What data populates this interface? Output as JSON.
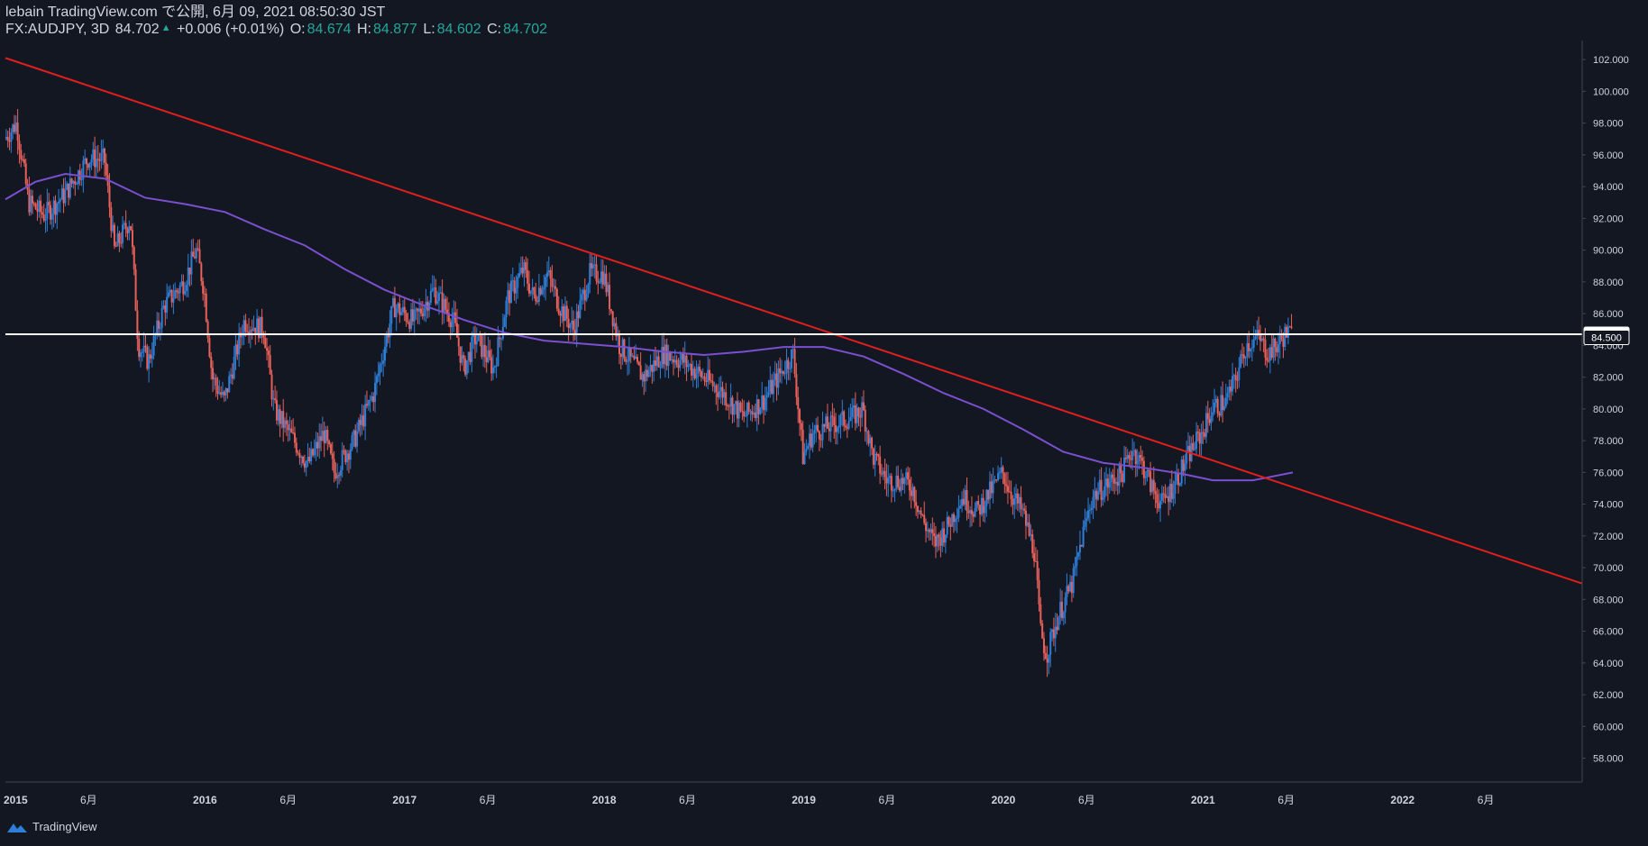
{
  "header": {
    "line1": "lebain TradingView.com で公開, 6月 09, 2021 08:50:30 JST",
    "symbol": "FX:AUDJPY, 3D",
    "last": "84.702",
    "change": "+0.006 (+0.01%)",
    "o_label": "O:",
    "o": "84.674",
    "h_label": "H:",
    "h": "84.877",
    "l_label": "L:",
    "l": "84.602",
    "c_label": "C:",
    "c": "84.702"
  },
  "footer": {
    "brand": "TradingView"
  },
  "colors": {
    "background": "#131722",
    "up": "#2e7fd9",
    "down": "#e8605a",
    "trendline": "#e01e1e",
    "ma": "#7b4fd0",
    "hline": "#ffffff",
    "axis_text": "#d1d4dc"
  },
  "chart_data": {
    "type": "candlestick",
    "symbol": "FX:AUDJPY",
    "timeframe": "3D",
    "ylim": [
      56.5,
      103.2
    ],
    "xlim": [
      2015.0,
      2022.9
    ],
    "y_ticks": [
      "58.000",
      "60.000",
      "62.000",
      "64.000",
      "66.000",
      "68.000",
      "70.000",
      "72.000",
      "74.000",
      "76.000",
      "78.000",
      "80.000",
      "82.000",
      "84.000",
      "86.000",
      "88.000",
      "90.000",
      "92.000",
      "94.000",
      "96.000",
      "98.000",
      "100.000",
      "102.000"
    ],
    "x_ticks": [
      {
        "t": 2015.0,
        "label": "2015"
      },
      {
        "t": 2015.417,
        "label": "6月"
      },
      {
        "t": 2016.0,
        "label": "2016"
      },
      {
        "t": 2016.417,
        "label": "6月"
      },
      {
        "t": 2017.0,
        "label": "2017"
      },
      {
        "t": 2017.417,
        "label": "6月"
      },
      {
        "t": 2018.0,
        "label": "2018"
      },
      {
        "t": 2018.417,
        "label": "6月"
      },
      {
        "t": 2019.0,
        "label": "2019"
      },
      {
        "t": 2019.417,
        "label": "6月"
      },
      {
        "t": 2020.0,
        "label": "2020"
      },
      {
        "t": 2020.417,
        "label": "6月"
      },
      {
        "t": 2021.0,
        "label": "2021"
      },
      {
        "t": 2021.417,
        "label": "6月"
      },
      {
        "t": 2022.0,
        "label": "2022"
      },
      {
        "t": 2022.417,
        "label": "6月"
      }
    ],
    "price_labels": [
      {
        "value": 84.702,
        "label": "84.702",
        "style": "filled"
      },
      {
        "value": 84.5,
        "label": "84.500",
        "style": "outline"
      }
    ],
    "horizontal_line": 84.702,
    "trendline": [
      [
        2015.0,
        102.1
      ],
      [
        2022.9,
        69.0
      ]
    ],
    "moving_average": [
      [
        2015.0,
        93.2
      ],
      [
        2015.15,
        94.3
      ],
      [
        2015.3,
        94.8
      ],
      [
        2015.5,
        94.5
      ],
      [
        2015.7,
        93.3
      ],
      [
        2015.9,
        92.9
      ],
      [
        2016.1,
        92.4
      ],
      [
        2016.3,
        91.3
      ],
      [
        2016.5,
        90.3
      ],
      [
        2016.7,
        88.8
      ],
      [
        2016.9,
        87.5
      ],
      [
        2017.1,
        86.5
      ],
      [
        2017.3,
        85.6
      ],
      [
        2017.5,
        84.8
      ],
      [
        2017.7,
        84.3
      ],
      [
        2017.9,
        84.1
      ],
      [
        2018.1,
        83.9
      ],
      [
        2018.3,
        83.6
      ],
      [
        2018.5,
        83.4
      ],
      [
        2018.7,
        83.6
      ],
      [
        2018.9,
        83.9
      ],
      [
        2019.1,
        83.9
      ],
      [
        2019.3,
        83.3
      ],
      [
        2019.5,
        82.2
      ],
      [
        2019.7,
        81.0
      ],
      [
        2019.9,
        80.0
      ],
      [
        2020.1,
        78.7
      ],
      [
        2020.3,
        77.3
      ],
      [
        2020.5,
        76.6
      ],
      [
        2020.7,
        76.3
      ],
      [
        2020.9,
        75.9
      ],
      [
        2021.05,
        75.5
      ],
      [
        2021.25,
        75.5
      ],
      [
        2021.45,
        76.0
      ]
    ],
    "price_path": [
      [
        2015.0,
        97.0
      ],
      [
        2015.06,
        98.0
      ],
      [
        2015.12,
        93.0
      ],
      [
        2015.2,
        92.2
      ],
      [
        2015.3,
        93.5
      ],
      [
        2015.42,
        95.8
      ],
      [
        2015.5,
        95.7
      ],
      [
        2015.55,
        90.0
      ],
      [
        2015.63,
        92.0
      ],
      [
        2015.67,
        84.0
      ],
      [
        2015.72,
        83.0
      ],
      [
        2015.8,
        86.5
      ],
      [
        2015.9,
        88.0
      ],
      [
        2015.96,
        90.0
      ],
      [
        2016.0,
        87.5
      ],
      [
        2016.04,
        82.0
      ],
      [
        2016.1,
        80.5
      ],
      [
        2016.2,
        85.5
      ],
      [
        2016.3,
        85.0
      ],
      [
        2016.35,
        80.0
      ],
      [
        2016.45,
        78.0
      ],
      [
        2016.52,
        76.5
      ],
      [
        2016.6,
        78.5
      ],
      [
        2016.65,
        76.0
      ],
      [
        2016.75,
        78.0
      ],
      [
        2016.85,
        81.0
      ],
      [
        2016.95,
        86.5
      ],
      [
        2017.05,
        85.5
      ],
      [
        2017.15,
        87.5
      ],
      [
        2017.25,
        85.5
      ],
      [
        2017.3,
        82.5
      ],
      [
        2017.36,
        84.5
      ],
      [
        2017.45,
        82.5
      ],
      [
        2017.52,
        87.0
      ],
      [
        2017.6,
        88.8
      ],
      [
        2017.65,
        87.0
      ],
      [
        2017.72,
        88.5
      ],
      [
        2017.78,
        86.5
      ],
      [
        2017.85,
        85.0
      ],
      [
        2017.93,
        88.5
      ],
      [
        2018.0,
        88.5
      ],
      [
        2018.08,
        84.0
      ],
      [
        2018.2,
        82.0
      ],
      [
        2018.3,
        83.5
      ],
      [
        2018.4,
        83.0
      ],
      [
        2018.5,
        82.0
      ],
      [
        2018.6,
        81.0
      ],
      [
        2018.7,
        79.5
      ],
      [
        2018.8,
        80.5
      ],
      [
        2018.9,
        82.5
      ],
      [
        2018.95,
        83.5
      ],
      [
        2019.0,
        77.0
      ],
      [
        2019.05,
        78.5
      ],
      [
        2019.15,
        79.0
      ],
      [
        2019.25,
        79.5
      ],
      [
        2019.3,
        80.0
      ],
      [
        2019.35,
        77.0
      ],
      [
        2019.42,
        75.5
      ],
      [
        2019.5,
        75.5
      ],
      [
        2019.55,
        75.0
      ],
      [
        2019.6,
        73.0
      ],
      [
        2019.66,
        71.5
      ],
      [
        2019.72,
        72.5
      ],
      [
        2019.8,
        74.5
      ],
      [
        2019.87,
        73.5
      ],
      [
        2019.95,
        75.0
      ],
      [
        2020.0,
        76.0
      ],
      [
        2020.05,
        74.5
      ],
      [
        2020.1,
        73.5
      ],
      [
        2020.16,
        71.0
      ],
      [
        2020.19,
        66.0
      ],
      [
        2020.22,
        64.5
      ],
      [
        2020.28,
        67.0
      ],
      [
        2020.35,
        69.0
      ],
      [
        2020.4,
        72.0
      ],
      [
        2020.45,
        74.5
      ],
      [
        2020.5,
        75.0
      ],
      [
        2020.6,
        76.0
      ],
      [
        2020.65,
        77.5
      ],
      [
        2020.7,
        76.5
      ],
      [
        2020.75,
        75.0
      ],
      [
        2020.8,
        74.0
      ],
      [
        2020.87,
        75.5
      ],
      [
        2020.95,
        77.5
      ],
      [
        2021.0,
        78.5
      ],
      [
        2021.05,
        80.0
      ],
      [
        2021.12,
        80.5
      ],
      [
        2021.17,
        82.0
      ],
      [
        2021.22,
        84.0
      ],
      [
        2021.28,
        84.5
      ],
      [
        2021.33,
        83.5
      ],
      [
        2021.38,
        84.0
      ],
      [
        2021.42,
        84.8
      ],
      [
        2021.44,
        84.7
      ]
    ]
  }
}
